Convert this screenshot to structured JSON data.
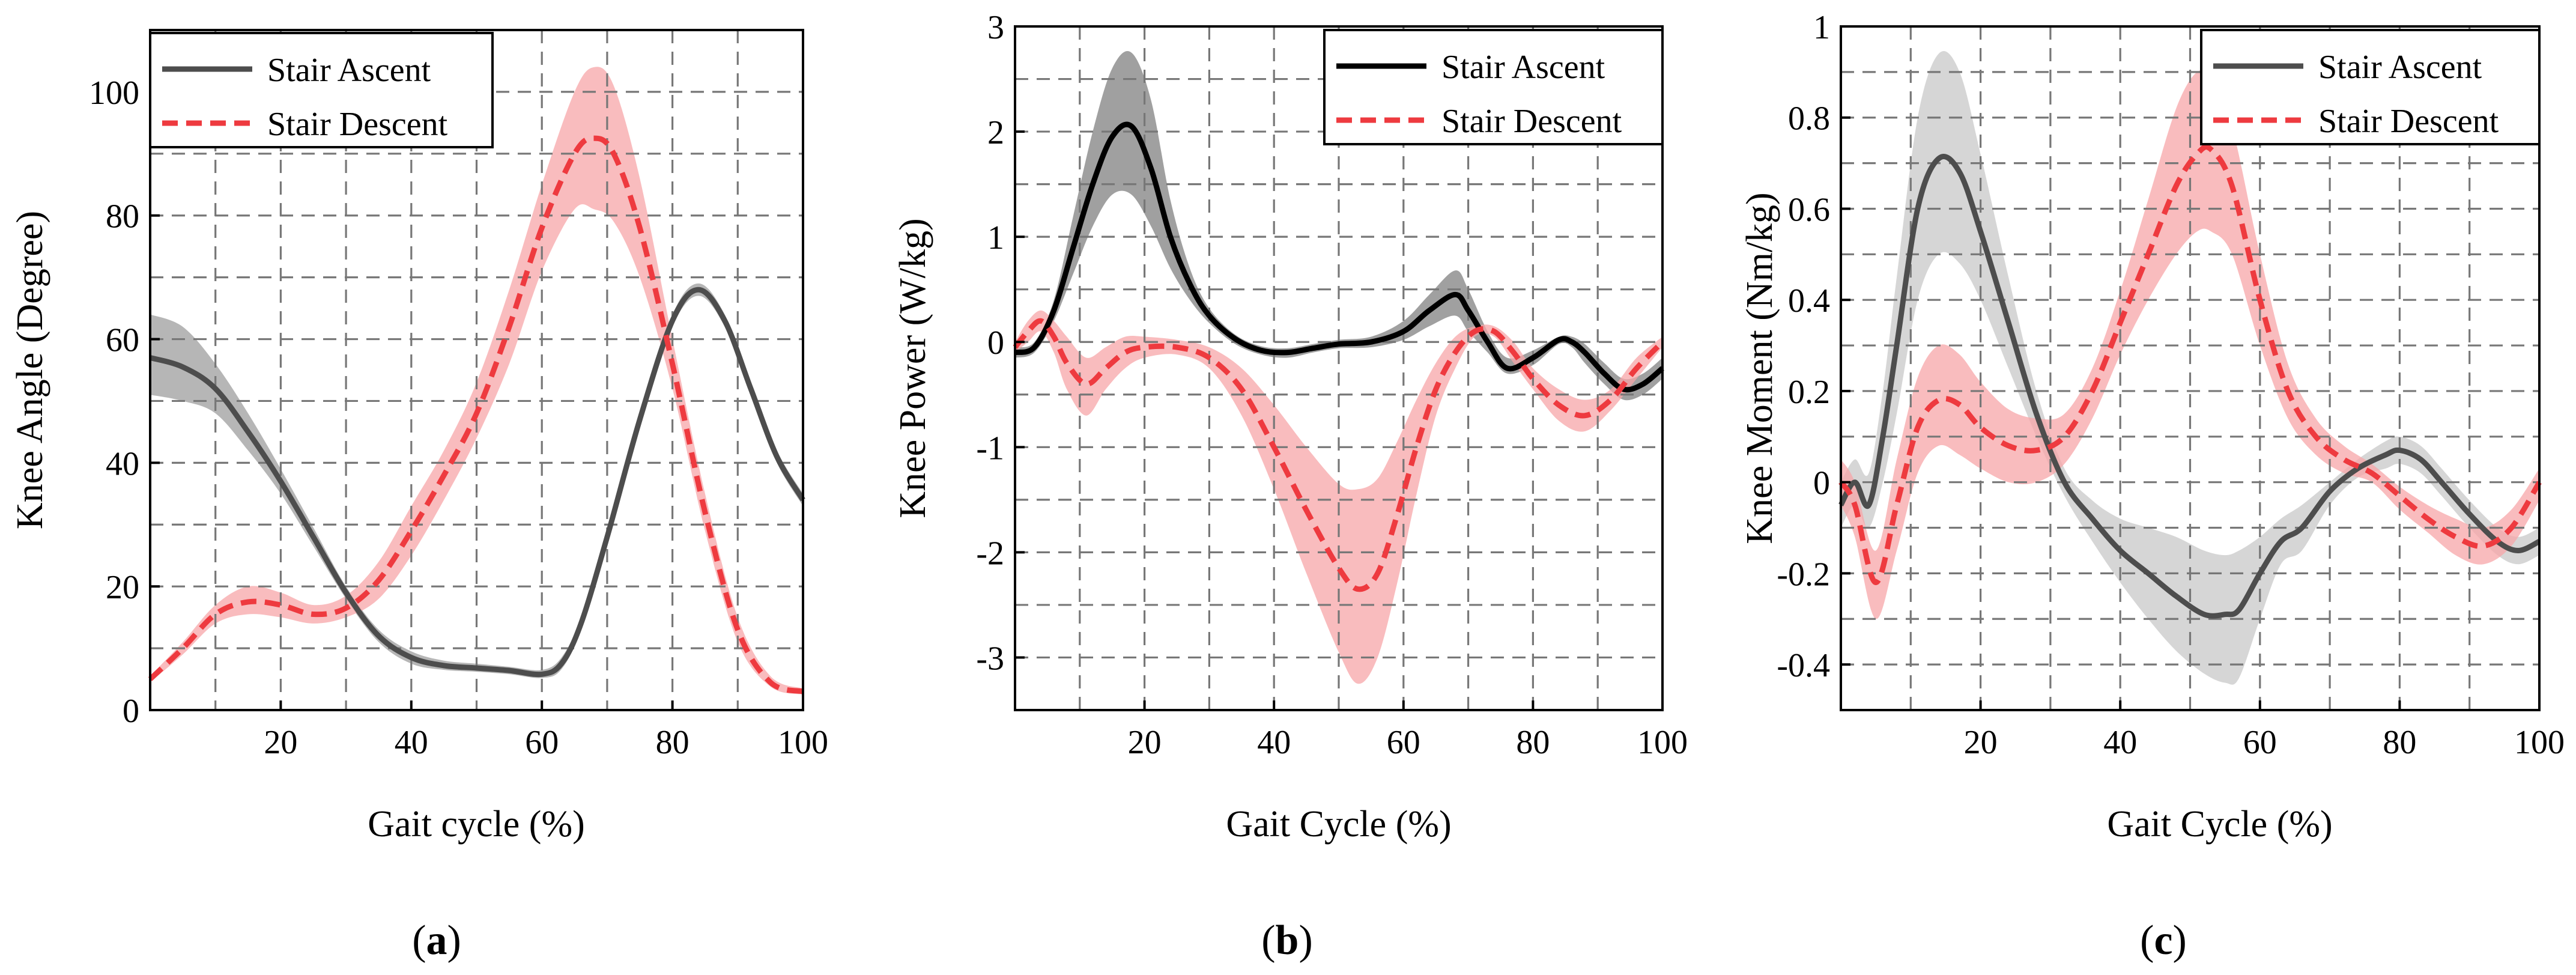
{
  "chart_data": [
    {
      "type": "line",
      "panel_label": "a",
      "xlabel": "Gait cycle (%)",
      "ylabel": "Knee Angle (Degree)",
      "xlim": [
        0,
        100
      ],
      "ylim": [
        0,
        110
      ],
      "xticks": [
        20,
        40,
        60,
        80,
        100
      ],
      "yticks": [
        0,
        20,
        40,
        60,
        80,
        100
      ],
      "x_grid": [
        10,
        20,
        30,
        40,
        50,
        60,
        70,
        80,
        90
      ],
      "y_grid": [
        10,
        20,
        30,
        40,
        50,
        60,
        70,
        80,
        90,
        100
      ],
      "legend_position": "top-left",
      "series": [
        {
          "name": "Stair Ascent",
          "color": "#4d4d4d",
          "band_color": "#9e9e9e",
          "line_style": "solid",
          "x": [
            0,
            5,
            10,
            15,
            20,
            25,
            30,
            35,
            40,
            45,
            50,
            55,
            60,
            63,
            66,
            70,
            75,
            80,
            84,
            88,
            92,
            96,
            100
          ],
          "y": [
            57,
            55.5,
            52,
            45,
            37,
            28,
            19,
            12,
            8.5,
            7.2,
            6.8,
            6.4,
            5.8,
            7.5,
            14,
            28,
            47,
            63,
            68,
            63,
            52,
            41,
            34
          ],
          "band_upper": [
            64,
            62,
            56,
            48,
            39,
            29.5,
            20,
            13,
            9.5,
            8,
            7.5,
            7,
            6.5,
            8.5,
            15,
            29,
            48,
            64,
            69,
            64,
            53,
            42,
            35
          ],
          "band_lower": [
            51,
            50,
            48,
            42,
            35,
            26.5,
            18,
            11,
            7.5,
            6.5,
            6.2,
            5.8,
            5.2,
            6.6,
            13,
            27,
            46,
            62,
            67,
            62,
            51,
            40,
            33
          ]
        },
        {
          "name": "Stair Descent",
          "color": "#ee3a3f",
          "band_color": "#f7a6a8",
          "line_style": "dashed",
          "x": [
            0,
            5,
            10,
            15,
            20,
            25,
            30,
            35,
            40,
            45,
            50,
            55,
            60,
            65,
            68,
            71,
            75,
            80,
            85,
            90,
            95,
            100
          ],
          "y": [
            5,
            10,
            15.5,
            17.5,
            17,
            15.5,
            16.5,
            21,
            29,
            38,
            48,
            62,
            78,
            90,
            92.5,
            90,
            78,
            56,
            32,
            13,
            4.5,
            3
          ],
          "band_upper": [
            5.5,
            11,
            17,
            20,
            19,
            17,
            18.5,
            24,
            33,
            42,
            53,
            68,
            85,
            100,
            104,
            101,
            86,
            60,
            35,
            15,
            5.5,
            3.5
          ],
          "band_lower": [
            4.5,
            9,
            14,
            15.5,
            15,
            14,
            15,
            18,
            25,
            34,
            44,
            56,
            71,
            81,
            81,
            79,
            70,
            52,
            29,
            11,
            3.8,
            2.5
          ]
        }
      ]
    },
    {
      "type": "line",
      "panel_label": "b",
      "xlabel": "Gait Cycle (%)",
      "ylabel": "Knee Power (W/kg)",
      "xlim": [
        0,
        100
      ],
      "ylim": [
        -3.5,
        3
      ],
      "xticks": [
        20,
        40,
        60,
        80,
        100
      ],
      "yticks": [
        -3,
        -2,
        -1,
        0,
        1,
        2,
        3
      ],
      "x_grid": [
        10,
        20,
        30,
        40,
        50,
        60,
        70,
        80,
        90
      ],
      "y_grid": [
        -3,
        -2.5,
        -2,
        -1.5,
        -1,
        -0.5,
        0,
        0.5,
        1,
        1.5,
        2,
        2.5
      ],
      "legend_position": "top-right",
      "series": [
        {
          "name": "Stair Ascent",
          "color": "#000000",
          "band_color": "#808080",
          "line_style": "solid",
          "x": [
            0,
            3,
            6,
            9,
            12,
            15,
            18,
            21,
            24,
            27,
            30,
            34,
            38,
            42,
            46,
            50,
            55,
            60,
            64,
            68,
            70,
            73,
            76,
            80,
            84,
            86,
            88,
            91,
            94,
            97,
            100
          ],
          "y": [
            -0.1,
            -0.05,
            0.3,
            0.9,
            1.5,
            1.95,
            2.05,
            1.65,
            1.0,
            0.55,
            0.25,
            0.03,
            -0.08,
            -0.1,
            -0.06,
            -0.02,
            0.0,
            0.1,
            0.3,
            0.45,
            0.3,
            0.0,
            -0.25,
            -0.15,
            0.02,
            0.0,
            -0.1,
            -0.3,
            -0.45,
            -0.4,
            -0.25
          ],
          "band_upper": [
            -0.05,
            0.0,
            0.4,
            1.2,
            2.0,
            2.6,
            2.75,
            2.3,
            1.35,
            0.7,
            0.32,
            0.07,
            -0.04,
            -0.06,
            -0.02,
            0.02,
            0.05,
            0.2,
            0.45,
            0.68,
            0.5,
            0.1,
            -0.15,
            -0.08,
            0.05,
            0.05,
            -0.02,
            -0.2,
            -0.35,
            -0.3,
            -0.15
          ],
          "band_lower": [
            -0.15,
            -0.1,
            0.2,
            0.65,
            1.1,
            1.4,
            1.4,
            1.1,
            0.7,
            0.4,
            0.18,
            -0.02,
            -0.12,
            -0.15,
            -0.1,
            -0.06,
            -0.05,
            0.02,
            0.15,
            0.25,
            0.1,
            -0.1,
            -0.3,
            -0.22,
            -0.02,
            -0.05,
            -0.2,
            -0.4,
            -0.55,
            -0.5,
            -0.35
          ]
        },
        {
          "name": "Stair Descent",
          "color": "#ee3a3f",
          "band_color": "#f7a6a8",
          "line_style": "dashed",
          "x": [
            0,
            2,
            4,
            6,
            8,
            11,
            14,
            17,
            20,
            25,
            30,
            35,
            40,
            45,
            50,
            53,
            56,
            59,
            62,
            65,
            68,
            71,
            74,
            77,
            80,
            84,
            88,
            92,
            96,
            100
          ],
          "y": [
            -0.05,
            0.1,
            0.2,
            0.05,
            -0.2,
            -0.4,
            -0.25,
            -0.1,
            -0.05,
            -0.05,
            -0.15,
            -0.45,
            -1.0,
            -1.6,
            -2.15,
            -2.35,
            -2.2,
            -1.65,
            -1.0,
            -0.45,
            -0.1,
            0.1,
            0.1,
            -0.1,
            -0.35,
            -0.6,
            -0.7,
            -0.55,
            -0.25,
            0.0
          ],
          "band_upper": [
            0.0,
            0.2,
            0.3,
            0.2,
            0.05,
            -0.15,
            -0.05,
            0.05,
            0.05,
            0.02,
            -0.05,
            -0.25,
            -0.6,
            -1.0,
            -1.35,
            -1.4,
            -1.3,
            -0.95,
            -0.55,
            -0.2,
            0.05,
            0.15,
            0.15,
            0.0,
            -0.25,
            -0.45,
            -0.55,
            -0.45,
            -0.15,
            0.05
          ],
          "band_lower": [
            -0.1,
            0.0,
            0.1,
            -0.1,
            -0.45,
            -0.7,
            -0.45,
            -0.25,
            -0.15,
            -0.12,
            -0.25,
            -0.7,
            -1.4,
            -2.2,
            -2.95,
            -3.25,
            -3.0,
            -2.3,
            -1.45,
            -0.7,
            -0.25,
            0.05,
            0.05,
            -0.2,
            -0.45,
            -0.75,
            -0.85,
            -0.65,
            -0.35,
            -0.05
          ]
        }
      ]
    },
    {
      "type": "line",
      "panel_label": "c",
      "xlabel": "Gait Cycle (%)",
      "ylabel": "Knee Moment (Nm/kg)",
      "xlim": [
        0,
        100
      ],
      "ylim": [
        -0.5,
        1
      ],
      "xticks": [
        20,
        40,
        60,
        80,
        100
      ],
      "yticks": [
        -0.4,
        -0.2,
        0,
        0.2,
        0.4,
        0.6,
        0.8,
        1
      ],
      "y_tick_labels": [
        "-0.4",
        "-0.2",
        "0",
        "0.2",
        "0.4",
        "0.6",
        "0.8",
        "1"
      ],
      "x_grid": [
        10,
        20,
        30,
        40,
        50,
        60,
        70,
        80,
        90
      ],
      "y_grid": [
        -0.4,
        -0.3,
        -0.2,
        -0.1,
        0,
        0.1,
        0.2,
        0.3,
        0.4,
        0.5,
        0.6,
        0.7,
        0.8,
        0.9
      ],
      "legend_position": "top-right",
      "series": [
        {
          "name": "Stair Ascent",
          "color": "#4d4d4d",
          "band_color": "#c8c8c8",
          "line_style": "solid",
          "x": [
            0,
            2,
            4,
            6,
            8,
            11,
            14,
            17,
            20,
            24,
            28,
            32,
            36,
            40,
            44,
            48,
            52,
            55,
            57,
            60,
            63,
            66,
            70,
            74,
            78,
            80,
            83,
            86,
            90,
            94,
            97,
            100
          ],
          "y": [
            -0.05,
            0.0,
            -0.05,
            0.1,
            0.3,
            0.6,
            0.71,
            0.68,
            0.55,
            0.35,
            0.15,
            0.0,
            -0.08,
            -0.15,
            -0.2,
            -0.25,
            -0.29,
            -0.29,
            -0.28,
            -0.2,
            -0.13,
            -0.1,
            -0.02,
            0.03,
            0.06,
            0.07,
            0.05,
            0.0,
            -0.07,
            -0.13,
            -0.15,
            -0.13
          ],
          "band_upper": [
            0.0,
            0.05,
            0.02,
            0.2,
            0.45,
            0.8,
            0.94,
            0.9,
            0.72,
            0.45,
            0.2,
            0.03,
            -0.04,
            -0.08,
            -0.1,
            -0.12,
            -0.15,
            -0.16,
            -0.15,
            -0.12,
            -0.08,
            -0.05,
            0.0,
            0.05,
            0.09,
            0.1,
            0.08,
            0.03,
            -0.04,
            -0.1,
            -0.12,
            -0.1
          ],
          "band_lower": [
            -0.1,
            -0.05,
            -0.1,
            0.0,
            0.15,
            0.4,
            0.5,
            0.48,
            0.4,
            0.25,
            0.1,
            -0.03,
            -0.13,
            -0.22,
            -0.3,
            -0.37,
            -0.42,
            -0.44,
            -0.43,
            -0.3,
            -0.18,
            -0.15,
            -0.05,
            0.01,
            0.03,
            0.04,
            0.02,
            -0.03,
            -0.1,
            -0.16,
            -0.18,
            -0.16
          ]
        },
        {
          "name": "Stair Descent",
          "color": "#ee3a3f",
          "band_color": "#f7a6a8",
          "line_style": "dashed",
          "x": [
            0,
            2,
            5,
            8,
            11,
            14,
            17,
            20,
            24,
            28,
            32,
            36,
            40,
            44,
            48,
            51,
            53,
            56,
            60,
            64,
            68,
            72,
            76,
            80,
            84,
            88,
            92,
            96,
            100
          ],
          "y": [
            0.0,
            -0.05,
            -0.22,
            -0.05,
            0.12,
            0.18,
            0.17,
            0.12,
            0.08,
            0.07,
            0.1,
            0.2,
            0.35,
            0.5,
            0.65,
            0.72,
            0.73,
            0.65,
            0.4,
            0.2,
            0.1,
            0.05,
            0.02,
            -0.03,
            -0.08,
            -0.12,
            -0.14,
            -0.1,
            0.0
          ],
          "band_upper": [
            0.05,
            0.0,
            -0.15,
            0.05,
            0.23,
            0.3,
            0.28,
            0.22,
            0.16,
            0.14,
            0.15,
            0.25,
            0.42,
            0.62,
            0.82,
            0.9,
            0.88,
            0.78,
            0.5,
            0.26,
            0.14,
            0.08,
            0.04,
            -0.01,
            -0.05,
            -0.08,
            -0.1,
            -0.06,
            0.03
          ],
          "band_lower": [
            -0.05,
            -0.12,
            -0.3,
            -0.15,
            0.02,
            0.08,
            0.06,
            0.03,
            0.0,
            0.0,
            0.04,
            0.14,
            0.28,
            0.4,
            0.5,
            0.55,
            0.55,
            0.5,
            0.3,
            0.14,
            0.06,
            0.02,
            0.0,
            -0.06,
            -0.11,
            -0.16,
            -0.18,
            -0.14,
            -0.04
          ]
        }
      ]
    }
  ]
}
